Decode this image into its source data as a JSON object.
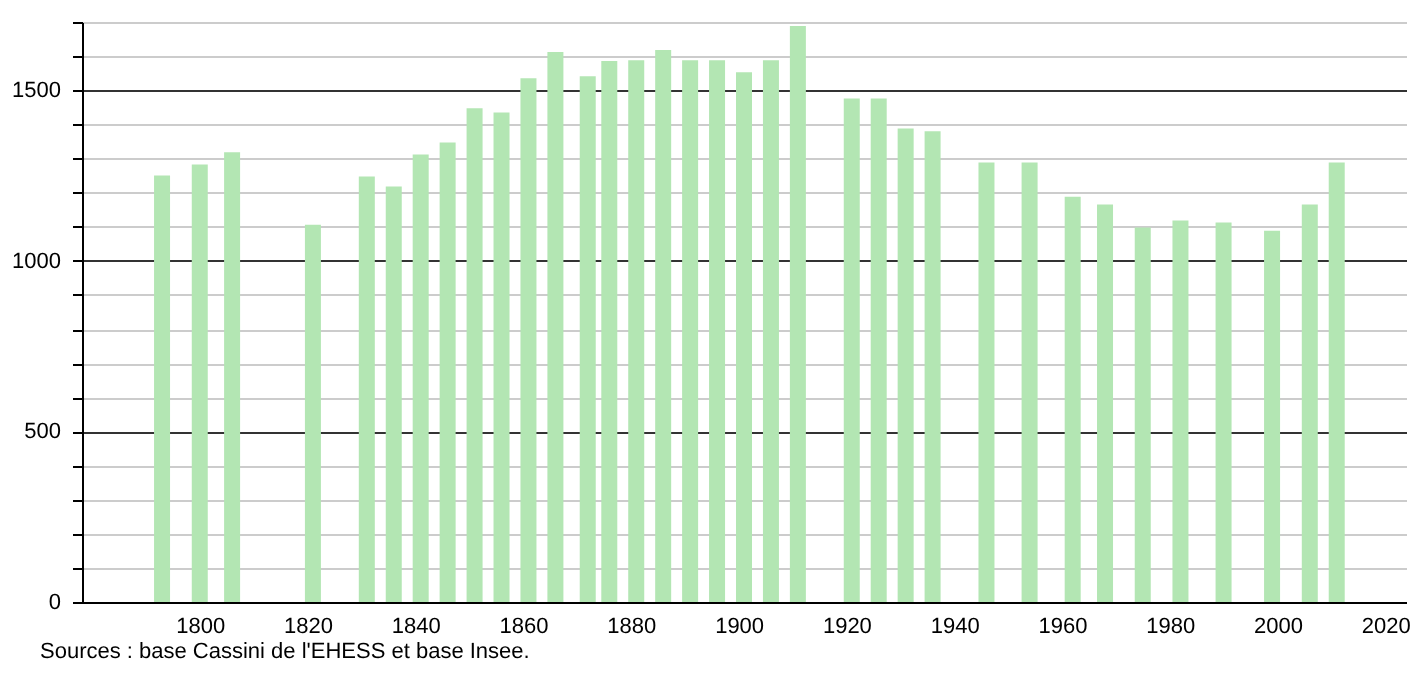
{
  "chart_data": {
    "type": "bar",
    "x": [
      1793,
      1800,
      1806,
      1821,
      1831,
      1836,
      1841,
      1846,
      1851,
      1856,
      1861,
      1866,
      1872,
      1876,
      1881,
      1886,
      1891,
      1896,
      1901,
      1906,
      1911,
      1921,
      1926,
      1931,
      1936,
      1946,
      1954,
      1962,
      1968,
      1975,
      1982,
      1990,
      1999,
      2006,
      2011
    ],
    "values": [
      1250,
      1282,
      1318,
      1106,
      1247,
      1218,
      1312,
      1347,
      1447,
      1435,
      1535,
      1612,
      1541,
      1586,
      1588,
      1618,
      1588,
      1588,
      1553,
      1588,
      1688,
      1476,
      1476,
      1388,
      1380,
      1288,
      1288,
      1188,
      1165,
      1098,
      1118,
      1112,
      1088,
      1165,
      1288
    ],
    "color": "#b3e6b3",
    "xlim": [
      1780,
      2022
    ],
    "xticks": [
      1800,
      1820,
      1840,
      1860,
      1880,
      1900,
      1920,
      1940,
      1960,
      1980,
      2000,
      2020
    ],
    "ylim": [
      0,
      1700
    ],
    "yticks": [
      0,
      {
        "value": 100,
        "label": null
      },
      {
        "value": 200,
        "label": null
      },
      {
        "value": 300,
        "label": null
      },
      {
        "value": 400,
        "label": null
      },
      500,
      {
        "value": 600,
        "label": null
      },
      {
        "value": 700,
        "label": null
      },
      {
        "value": 800,
        "label": null
      },
      {
        "value": 900,
        "label": null
      },
      1000,
      {
        "value": 1100,
        "label": null
      },
      {
        "value": 1200,
        "label": null
      },
      {
        "value": 1300,
        "label": null
      },
      {
        "value": 1400,
        "label": null
      },
      1500,
      {
        "value": 1600,
        "label": null
      },
      {
        "value": 1700,
        "label": null
      }
    ],
    "grid": "y",
    "annotations": [
      "Sources : base Cassini de l'EHESS et base Insee."
    ]
  }
}
